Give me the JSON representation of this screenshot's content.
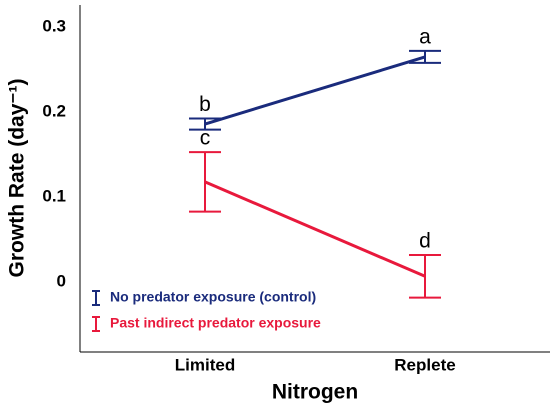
{
  "chart_data": {
    "type": "line",
    "x_label": "Nitrogen",
    "y_label": "Growth Rate (day⁻¹)",
    "categories": [
      "Limited",
      "Replete"
    ],
    "series": [
      {
        "name": "No predator exposure (control)",
        "color": "#1a2b7c",
        "values": [
          0.193,
          0.272
        ],
        "errors": [
          0.0065,
          0.007
        ],
        "letters": [
          "b",
          "a"
        ]
      },
      {
        "name": "Past indirect predator exposure",
        "color": "#e8193c",
        "values": [
          0.125,
          0.014
        ],
        "errors": [
          0.035,
          0.025
        ],
        "letters": [
          "c",
          "d"
        ]
      }
    ],
    "ylim": [
      -0.075,
      0.333
    ],
    "yticks": [
      0,
      0.1,
      0.2,
      0.3
    ],
    "legend": "lower left"
  }
}
